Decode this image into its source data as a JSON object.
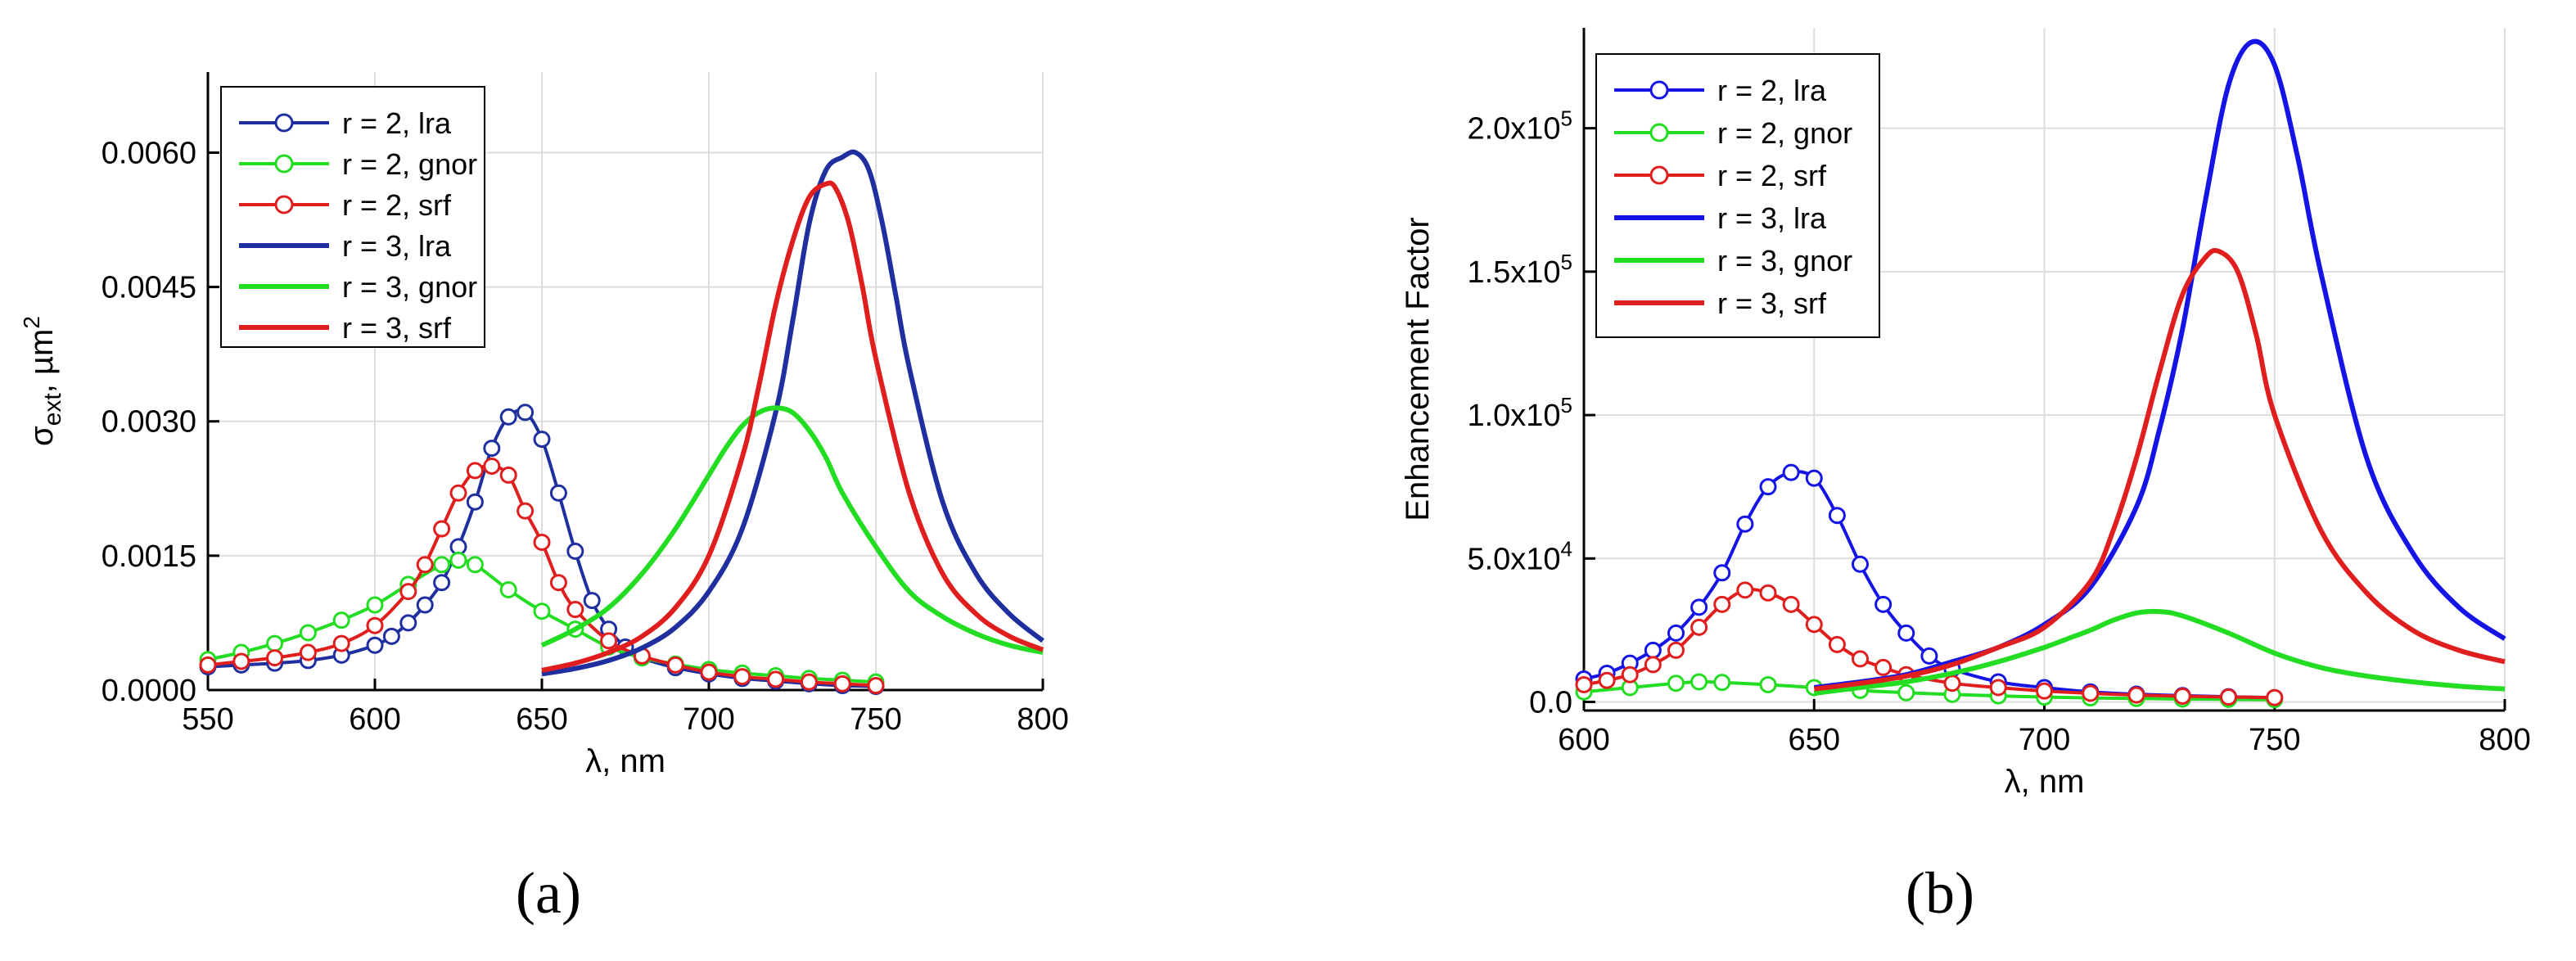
{
  "panel_labels": [
    "(a)",
    "(b)"
  ],
  "chart_data": [
    {
      "type": "line",
      "panel": "a",
      "xlabel": "λ, nm",
      "ylabel_main": "σ",
      "ylabel_sub": "ext",
      "ylabel_rest": ", µm",
      "ylabel_sup": "2",
      "xlim": [
        550,
        800
      ],
      "ylim": [
        0,
        0.0069
      ],
      "xticks": [
        550,
        600,
        650,
        700,
        750,
        800
      ],
      "xtick_labels": [
        "550",
        "600",
        "650",
        "700",
        "750",
        "800"
      ],
      "yticks": [
        0,
        0.0015,
        0.003,
        0.0045,
        0.006
      ],
      "ytick_labels": [
        "0.0000",
        "0.0015",
        "0.0030",
        "0.0045",
        "0.0060"
      ],
      "grid": true,
      "legend_position": "top-left",
      "series": [
        {
          "name": "r = 2, lra",
          "color": "#1f2fa0",
          "marker": "circle",
          "x": [
            550,
            560,
            570,
            580,
            590,
            600,
            605,
            610,
            615,
            620,
            625,
            630,
            635,
            640,
            645,
            650,
            655,
            660,
            665,
            670,
            675,
            680,
            690,
            700,
            710,
            720,
            730,
            740,
            750
          ],
          "y": [
            0.00026,
            0.00028,
            0.0003,
            0.00033,
            0.00039,
            0.0005,
            0.0006,
            0.00075,
            0.00095,
            0.0012,
            0.0016,
            0.0021,
            0.0027,
            0.00305,
            0.0031,
            0.0028,
            0.0022,
            0.00155,
            0.001,
            0.00068,
            0.00048,
            0.00036,
            0.00025,
            0.00018,
            0.00013,
            0.0001,
            7e-05,
            5e-05,
            4e-05
          ]
        },
        {
          "name": "r = 2, gnor",
          "color": "#22dd22",
          "marker": "circle",
          "x": [
            550,
            560,
            570,
            580,
            590,
            600,
            610,
            620,
            625,
            630,
            640,
            650,
            660,
            670,
            680,
            690,
            700,
            710,
            720,
            730,
            740,
            750
          ],
          "y": [
            0.00034,
            0.00042,
            0.00052,
            0.00064,
            0.00078,
            0.00095,
            0.00118,
            0.0014,
            0.00145,
            0.0014,
            0.00112,
            0.00088,
            0.00068,
            0.00048,
            0.00036,
            0.00029,
            0.00023,
            0.00019,
            0.00016,
            0.00013,
            0.00011,
            9e-05
          ]
        },
        {
          "name": "r = 2, srf",
          "color": "#e01e1e",
          "marker": "circle",
          "x": [
            550,
            560,
            570,
            580,
            590,
            600,
            610,
            615,
            620,
            625,
            630,
            635,
            640,
            645,
            650,
            655,
            660,
            670,
            680,
            690,
            700,
            710,
            720,
            730,
            740,
            750
          ],
          "y": [
            0.00028,
            0.00032,
            0.00036,
            0.00042,
            0.00052,
            0.00072,
            0.0011,
            0.0014,
            0.0018,
            0.0022,
            0.00245,
            0.0025,
            0.0024,
            0.002,
            0.00165,
            0.0012,
            0.0009,
            0.00055,
            0.00038,
            0.00028,
            0.0002,
            0.00015,
            0.00012,
            9e-05,
            7e-05,
            5e-05
          ]
        },
        {
          "name": "r = 3, lra",
          "color": "#1f2fa0",
          "marker": "none",
          "x": [
            650,
            660,
            670,
            680,
            690,
            700,
            710,
            720,
            725,
            730,
            735,
            740,
            744,
            748,
            752,
            756,
            760,
            770,
            780,
            790,
            800
          ],
          "y": [
            0.00018,
            0.00024,
            0.00033,
            0.00047,
            0.0007,
            0.0011,
            0.0018,
            0.0031,
            0.0041,
            0.0052,
            0.0058,
            0.00595,
            0.006,
            0.0058,
            0.0052,
            0.0044,
            0.0036,
            0.0021,
            0.0013,
            0.00085,
            0.00055
          ]
        },
        {
          "name": "r = 3, gnor",
          "color": "#22dd22",
          "marker": "none",
          "x": [
            650,
            660,
            670,
            680,
            690,
            700,
            705,
            710,
            715,
            720,
            725,
            730,
            735,
            740,
            750,
            760,
            770,
            780,
            790,
            800
          ],
          "y": [
            0.0005,
            0.00068,
            0.00092,
            0.0013,
            0.0018,
            0.0024,
            0.0027,
            0.00295,
            0.0031,
            0.00315,
            0.0031,
            0.0029,
            0.0026,
            0.0022,
            0.0016,
            0.0011,
            0.00082,
            0.00063,
            0.0005,
            0.00042
          ]
        },
        {
          "name": "r = 3, srf",
          "color": "#e01e1e",
          "marker": "none",
          "x": [
            650,
            660,
            670,
            680,
            690,
            700,
            710,
            715,
            720,
            725,
            730,
            735,
            738,
            742,
            746,
            750,
            760,
            770,
            780,
            790,
            800
          ],
          "y": [
            0.00022,
            0.0003,
            0.00042,
            0.0006,
            0.00092,
            0.0015,
            0.0026,
            0.0034,
            0.0043,
            0.005,
            0.0055,
            0.00565,
            0.0056,
            0.0052,
            0.0045,
            0.0037,
            0.0022,
            0.0013,
            0.00085,
            0.0006,
            0.00045
          ]
        }
      ]
    },
    {
      "type": "line",
      "panel": "b",
      "xlabel": "λ, nm",
      "ylabel": "Enhancement Factor",
      "xlim": [
        600,
        800
      ],
      "ylim": [
        -3000,
        235000
      ],
      "xticks": [
        600,
        650,
        700,
        750,
        800
      ],
      "xtick_labels": [
        "600",
        "650",
        "700",
        "750",
        "800"
      ],
      "yticks": [
        0,
        50000,
        100000,
        150000,
        200000
      ],
      "ytick_mantissa": [
        "0.0",
        "5.0x10",
        "1.0x10",
        "1.5x10",
        "2.0x10"
      ],
      "ytick_exponent": [
        "",
        "4",
        "5",
        "5",
        "5"
      ],
      "grid": true,
      "legend_position": "top-left",
      "series": [
        {
          "name": "r = 2, lra",
          "color": "#1414e6",
          "marker": "circle",
          "x": [
            600,
            605,
            610,
            615,
            620,
            625,
            630,
            635,
            640,
            645,
            650,
            655,
            660,
            665,
            670,
            675,
            680,
            690,
            700,
            710,
            720,
            730,
            740,
            750
          ],
          "y": [
            8000,
            10000,
            13500,
            18000,
            24000,
            33000,
            45000,
            62000,
            75000,
            80000,
            78000,
            65000,
            48000,
            34000,
            24000,
            16000,
            11500,
            7000,
            5000,
            3500,
            2700,
            2200,
            1800,
            1500
          ]
        },
        {
          "name": "r = 2, gnor",
          "color": "#22dd22",
          "marker": "circle",
          "x": [
            600,
            610,
            620,
            625,
            630,
            640,
            650,
            660,
            670,
            680,
            690,
            700,
            710,
            720,
            730,
            740,
            750
          ],
          "y": [
            3500,
            5000,
            6500,
            7000,
            6800,
            6000,
            5000,
            4000,
            3200,
            2600,
            2100,
            1700,
            1400,
            1200,
            1000,
            900,
            800
          ]
        },
        {
          "name": "r = 2, srf",
          "color": "#e01e1e",
          "marker": "circle",
          "x": [
            600,
            605,
            610,
            615,
            620,
            625,
            630,
            635,
            640,
            645,
            650,
            655,
            660,
            665,
            670,
            680,
            690,
            700,
            710,
            720,
            730,
            740,
            750
          ],
          "y": [
            6000,
            7500,
            9500,
            13000,
            18000,
            26000,
            34000,
            39000,
            38000,
            34000,
            27000,
            20000,
            15000,
            12000,
            9500,
            6500,
            5000,
            3800,
            3000,
            2400,
            2000,
            1700,
            1500
          ]
        },
        {
          "name": "r = 3, lra",
          "color": "#1414e6",
          "marker": "none",
          "x": [
            650,
            660,
            670,
            680,
            690,
            700,
            710,
            720,
            725,
            730,
            735,
            740,
            745,
            750,
            755,
            760,
            770,
            780,
            790,
            800
          ],
          "y": [
            5000,
            7000,
            9500,
            14000,
            19000,
            27000,
            40000,
            68000,
            95000,
            130000,
            175000,
            215000,
            230000,
            222000,
            190000,
            150000,
            85000,
            52000,
            33000,
            22000
          ]
        },
        {
          "name": "r = 3, gnor",
          "color": "#22dd22",
          "marker": "none",
          "x": [
            650,
            660,
            670,
            680,
            690,
            700,
            705,
            710,
            715,
            720,
            725,
            730,
            740,
            750,
            760,
            770,
            780,
            790,
            800
          ],
          "y": [
            3000,
            5000,
            7000,
            10000,
            14000,
            19000,
            22000,
            25000,
            28500,
            31000,
            31500,
            30000,
            24000,
            17000,
            12000,
            9000,
            7000,
            5500,
            4500
          ]
        },
        {
          "name": "r = 3, srf",
          "color": "#e01e1e",
          "marker": "none",
          "x": [
            650,
            660,
            670,
            680,
            690,
            700,
            710,
            715,
            720,
            725,
            730,
            735,
            738,
            742,
            746,
            750,
            760,
            770,
            780,
            790,
            800
          ],
          "y": [
            4500,
            6500,
            9000,
            13000,
            19000,
            26000,
            42000,
            60000,
            85000,
            115000,
            142000,
            155000,
            157000,
            150000,
            128000,
            100000,
            60000,
            38000,
            25000,
            18000,
            14000
          ]
        }
      ]
    }
  ]
}
